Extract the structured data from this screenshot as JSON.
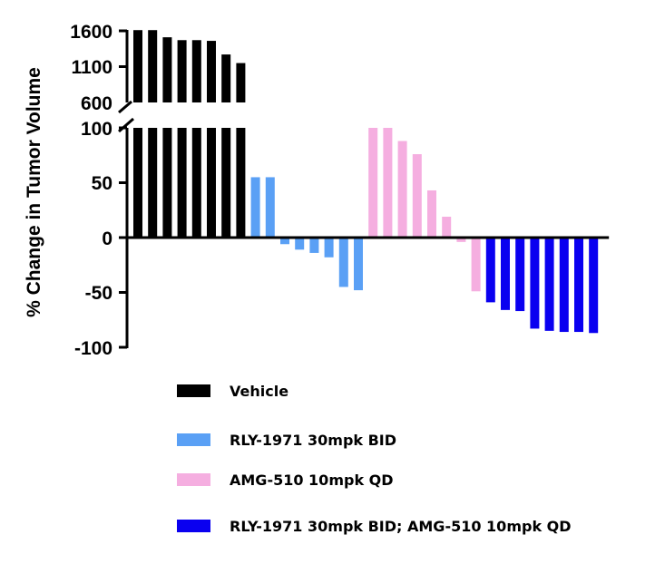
{
  "chart_data": {
    "type": "bar",
    "title": "",
    "xlabel": "",
    "ylabel": "% Change in Tumor Volume",
    "axis_break": true,
    "upper_segment": {
      "ylim": [
        600,
        1600
      ],
      "ticks": [
        "1600",
        "1100",
        "600"
      ]
    },
    "lower_segment": {
      "ylim": [
        -100,
        100
      ],
      "ticks": [
        "100",
        "50",
        "0",
        "-50",
        "-100"
      ]
    },
    "grid": false,
    "legend_position": "bottom",
    "series": [
      {
        "name": "Vehicle",
        "color": "#000000",
        "values": [
          1610,
          1610,
          1510,
          1470,
          1470,
          1460,
          1270,
          1150
        ]
      },
      {
        "name": "RLY-1971 30mpk BID",
        "color": "#5aa0f5",
        "values": [
          55,
          55,
          -6,
          -11,
          -14,
          -18,
          -45,
          -48
        ]
      },
      {
        "name": "AMG-510 10mpk QD",
        "color": "#f5aee0",
        "values": [
          100,
          100,
          88,
          76,
          43,
          19,
          -4,
          -49
        ]
      },
      {
        "name": "RLY-1971 30mpk BID; AMG-510 10mpk QD",
        "color": "#0a00f0",
        "values": [
          -59,
          -66,
          -67,
          -83,
          -85,
          -86,
          -86,
          -87
        ]
      }
    ]
  }
}
